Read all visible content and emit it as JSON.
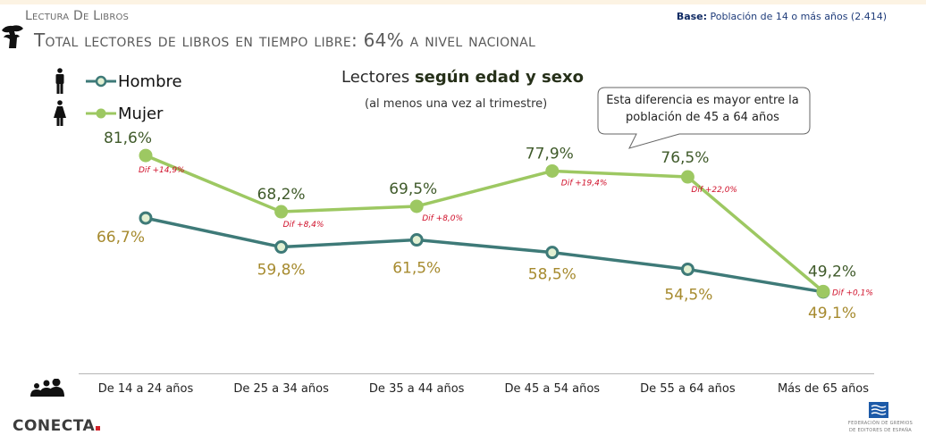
{
  "header": {
    "section": "Lectura De Libros",
    "title": "Total lectores de libros en tiempo libre: 64% a nivel nacional",
    "base_label": "Base:",
    "base_value": "Población de 14 o más años (2.414)"
  },
  "legend": {
    "items": [
      {
        "name": "Hombre",
        "icon": "male-person-icon",
        "color": "#3e7a78"
      },
      {
        "name": "Mujer",
        "icon": "female-person-icon",
        "color": "#9dc862"
      }
    ]
  },
  "callout": {
    "text": "Esta diferencia es mayor entre la población de 45 a 64 años"
  },
  "chart_data": {
    "type": "line",
    "title_regular": "Lectores ",
    "title_bold": "según edad y sexo",
    "subtitle": "(al menos una vez al trimestre)",
    "categories": [
      "De 14 a 24 años",
      "De 25 a 34 años",
      "De 35 a 44 años",
      "De 45 a 54 años",
      "De 55 a 64 años",
      "Más de 65 años"
    ],
    "series": [
      {
        "name": "Mujer",
        "values": [
          81.6,
          68.2,
          69.5,
          77.9,
          76.5,
          49.2
        ],
        "labels": [
          "81,6%",
          "68,2%",
          "69,5%",
          "77,9%",
          "76,5%",
          "49,2%"
        ],
        "color": "#9dc862",
        "label_color": "#3f5a2a"
      },
      {
        "name": "Hombre",
        "values": [
          66.7,
          59.8,
          61.5,
          58.5,
          54.5,
          49.1
        ],
        "labels": [
          "66,7%",
          "59,8%",
          "61,5%",
          "58,5%",
          "54,5%",
          "49,1%"
        ],
        "color": "#3e7a78",
        "label_color": "#a68a2e"
      }
    ],
    "differences": [
      "Dif +14,9%",
      "Dif +8,4%",
      "Dif +8,0%",
      "Dif +19,4%",
      "Dif +22,0%",
      "Dif +0,1%"
    ],
    "xlabel": "",
    "ylabel": "",
    "grid": false,
    "legend_position": "top-left"
  },
  "footer": {
    "brand": "CONECTA",
    "publisher_line1": "FEDERACIÓN DE GREMIOS",
    "publisher_line2": "DE EDITORES DE ESPAÑA"
  }
}
